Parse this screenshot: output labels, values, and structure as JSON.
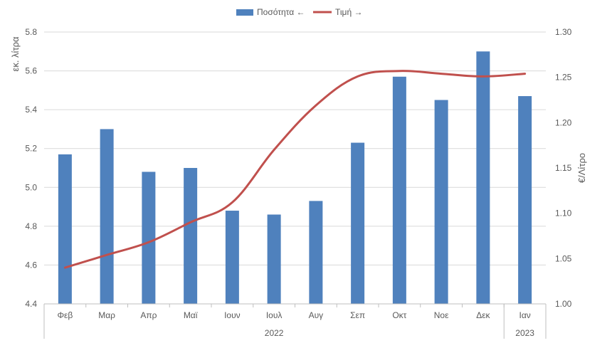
{
  "chart_data": {
    "type": "bar",
    "categories": [
      "Φεβ",
      "Μαρ",
      "Απρ",
      "Μαϊ",
      "Ιουν",
      "Ιουλ",
      "Αυγ",
      "Σεπ",
      "Οκτ",
      "Νοε",
      "Δεκ",
      "Ιαν"
    ],
    "year_groups": [
      {
        "label": "2022",
        "start": 0,
        "end": 10
      },
      {
        "label": "2023",
        "start": 11,
        "end": 11
      }
    ],
    "series": [
      {
        "name": "Ποσότητα ←",
        "type": "bar",
        "axis": "left",
        "color": "#4f81bd",
        "values": [
          5.17,
          5.3,
          5.08,
          5.1,
          4.88,
          4.86,
          4.93,
          5.23,
          5.57,
          5.45,
          5.7,
          5.47
        ]
      },
      {
        "name": "Τιμή →",
        "type": "line",
        "axis": "right",
        "color": "#c0504d",
        "values": [
          1.04,
          1.054,
          1.068,
          1.09,
          1.112,
          1.17,
          1.219,
          1.251,
          1.257,
          1.254,
          1.251,
          1.254
        ]
      }
    ],
    "ylabel": "εκ. λίτρα",
    "ylim": [
      4.4,
      5.8
    ],
    "yticks": [
      "4.4",
      "4.6",
      "4.8",
      "5.0",
      "5.2",
      "5.4",
      "5.6",
      "5.8"
    ],
    "y2label": "€/Λίτρο",
    "y2lim": [
      1.0,
      1.3
    ],
    "y2ticks": [
      "1.00",
      "1.05",
      "1.10",
      "1.15",
      "1.20",
      "1.25",
      "1.30"
    ],
    "grid": true,
    "legend_position": "top-center"
  }
}
